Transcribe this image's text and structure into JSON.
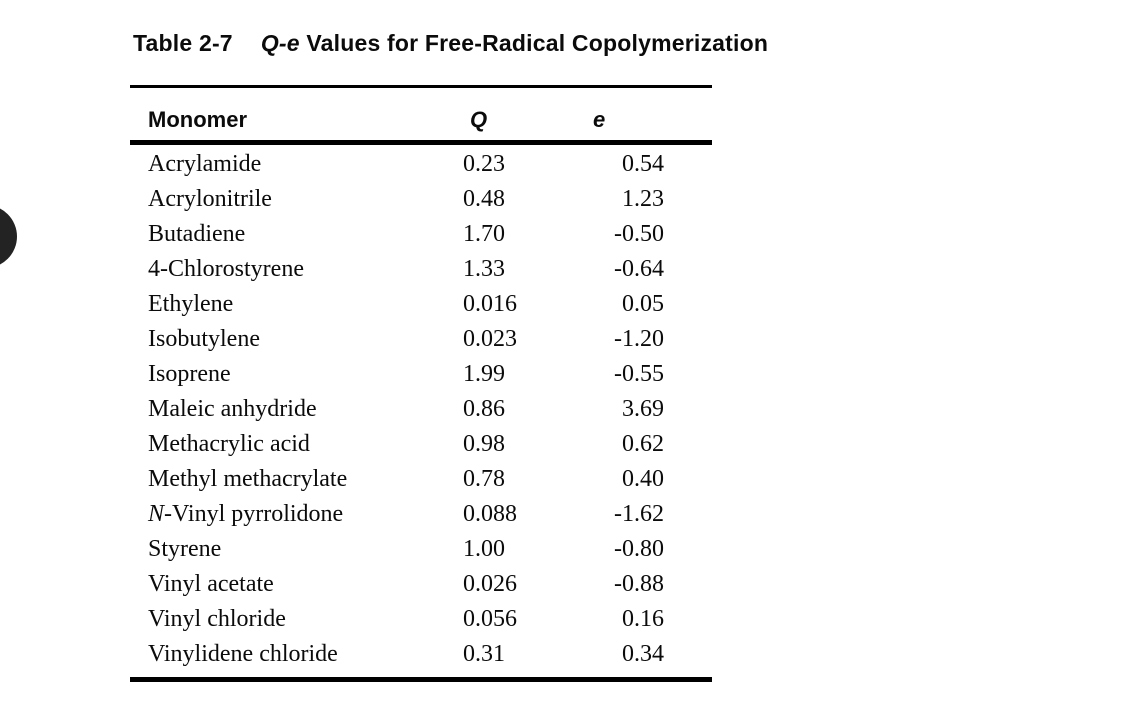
{
  "page": {
    "background": "#ffffff",
    "text_color": "#0b0b0b",
    "rule_color": "#000000"
  },
  "nav_button": {
    "name": "page-nav-button",
    "color": "#232323"
  },
  "caption": {
    "label": "Table 2-7",
    "term": "Q-e",
    "rest": "Values for Free-Radical Copolymerization"
  },
  "table": {
    "columns": {
      "monomer": "Monomer",
      "q": "Q",
      "e": "e"
    },
    "rows": [
      {
        "italic": "",
        "name": "Acrylamide",
        "q": "0.23",
        "e": "0.54"
      },
      {
        "italic": "",
        "name": "Acrylonitrile",
        "q": "0.48",
        "e": "1.23"
      },
      {
        "italic": "",
        "name": "Butadiene",
        "q": "1.70",
        "e": "-0.50"
      },
      {
        "italic": "",
        "name": "4-Chlorostyrene",
        "q": "1.33",
        "e": "-0.64"
      },
      {
        "italic": "",
        "name": "Ethylene",
        "q": "0.016",
        "e": "0.05"
      },
      {
        "italic": "",
        "name": "Isobutylene",
        "q": "0.023",
        "e": "-1.20"
      },
      {
        "italic": "",
        "name": "Isoprene",
        "q": "1.99",
        "e": "-0.55"
      },
      {
        "italic": "",
        "name": "Maleic anhydride",
        "q": "0.86",
        "e": "3.69"
      },
      {
        "italic": "",
        "name": "Methacrylic acid",
        "q": "0.98",
        "e": "0.62"
      },
      {
        "italic": "",
        "name": "Methyl methacrylate",
        "q": "0.78",
        "e": "0.40"
      },
      {
        "italic": "N",
        "name": "-Vinyl pyrrolidone",
        "q": "0.088",
        "e": "-1.62"
      },
      {
        "italic": "",
        "name": "Styrene",
        "q": "1.00",
        "e": "-0.80"
      },
      {
        "italic": "",
        "name": "Vinyl acetate",
        "q": "0.026",
        "e": "-0.88"
      },
      {
        "italic": "",
        "name": "Vinyl chloride",
        "q": "0.056",
        "e": "0.16"
      },
      {
        "italic": "",
        "name": "Vinylidene chloride",
        "q": "0.31",
        "e": "0.34"
      }
    ]
  }
}
